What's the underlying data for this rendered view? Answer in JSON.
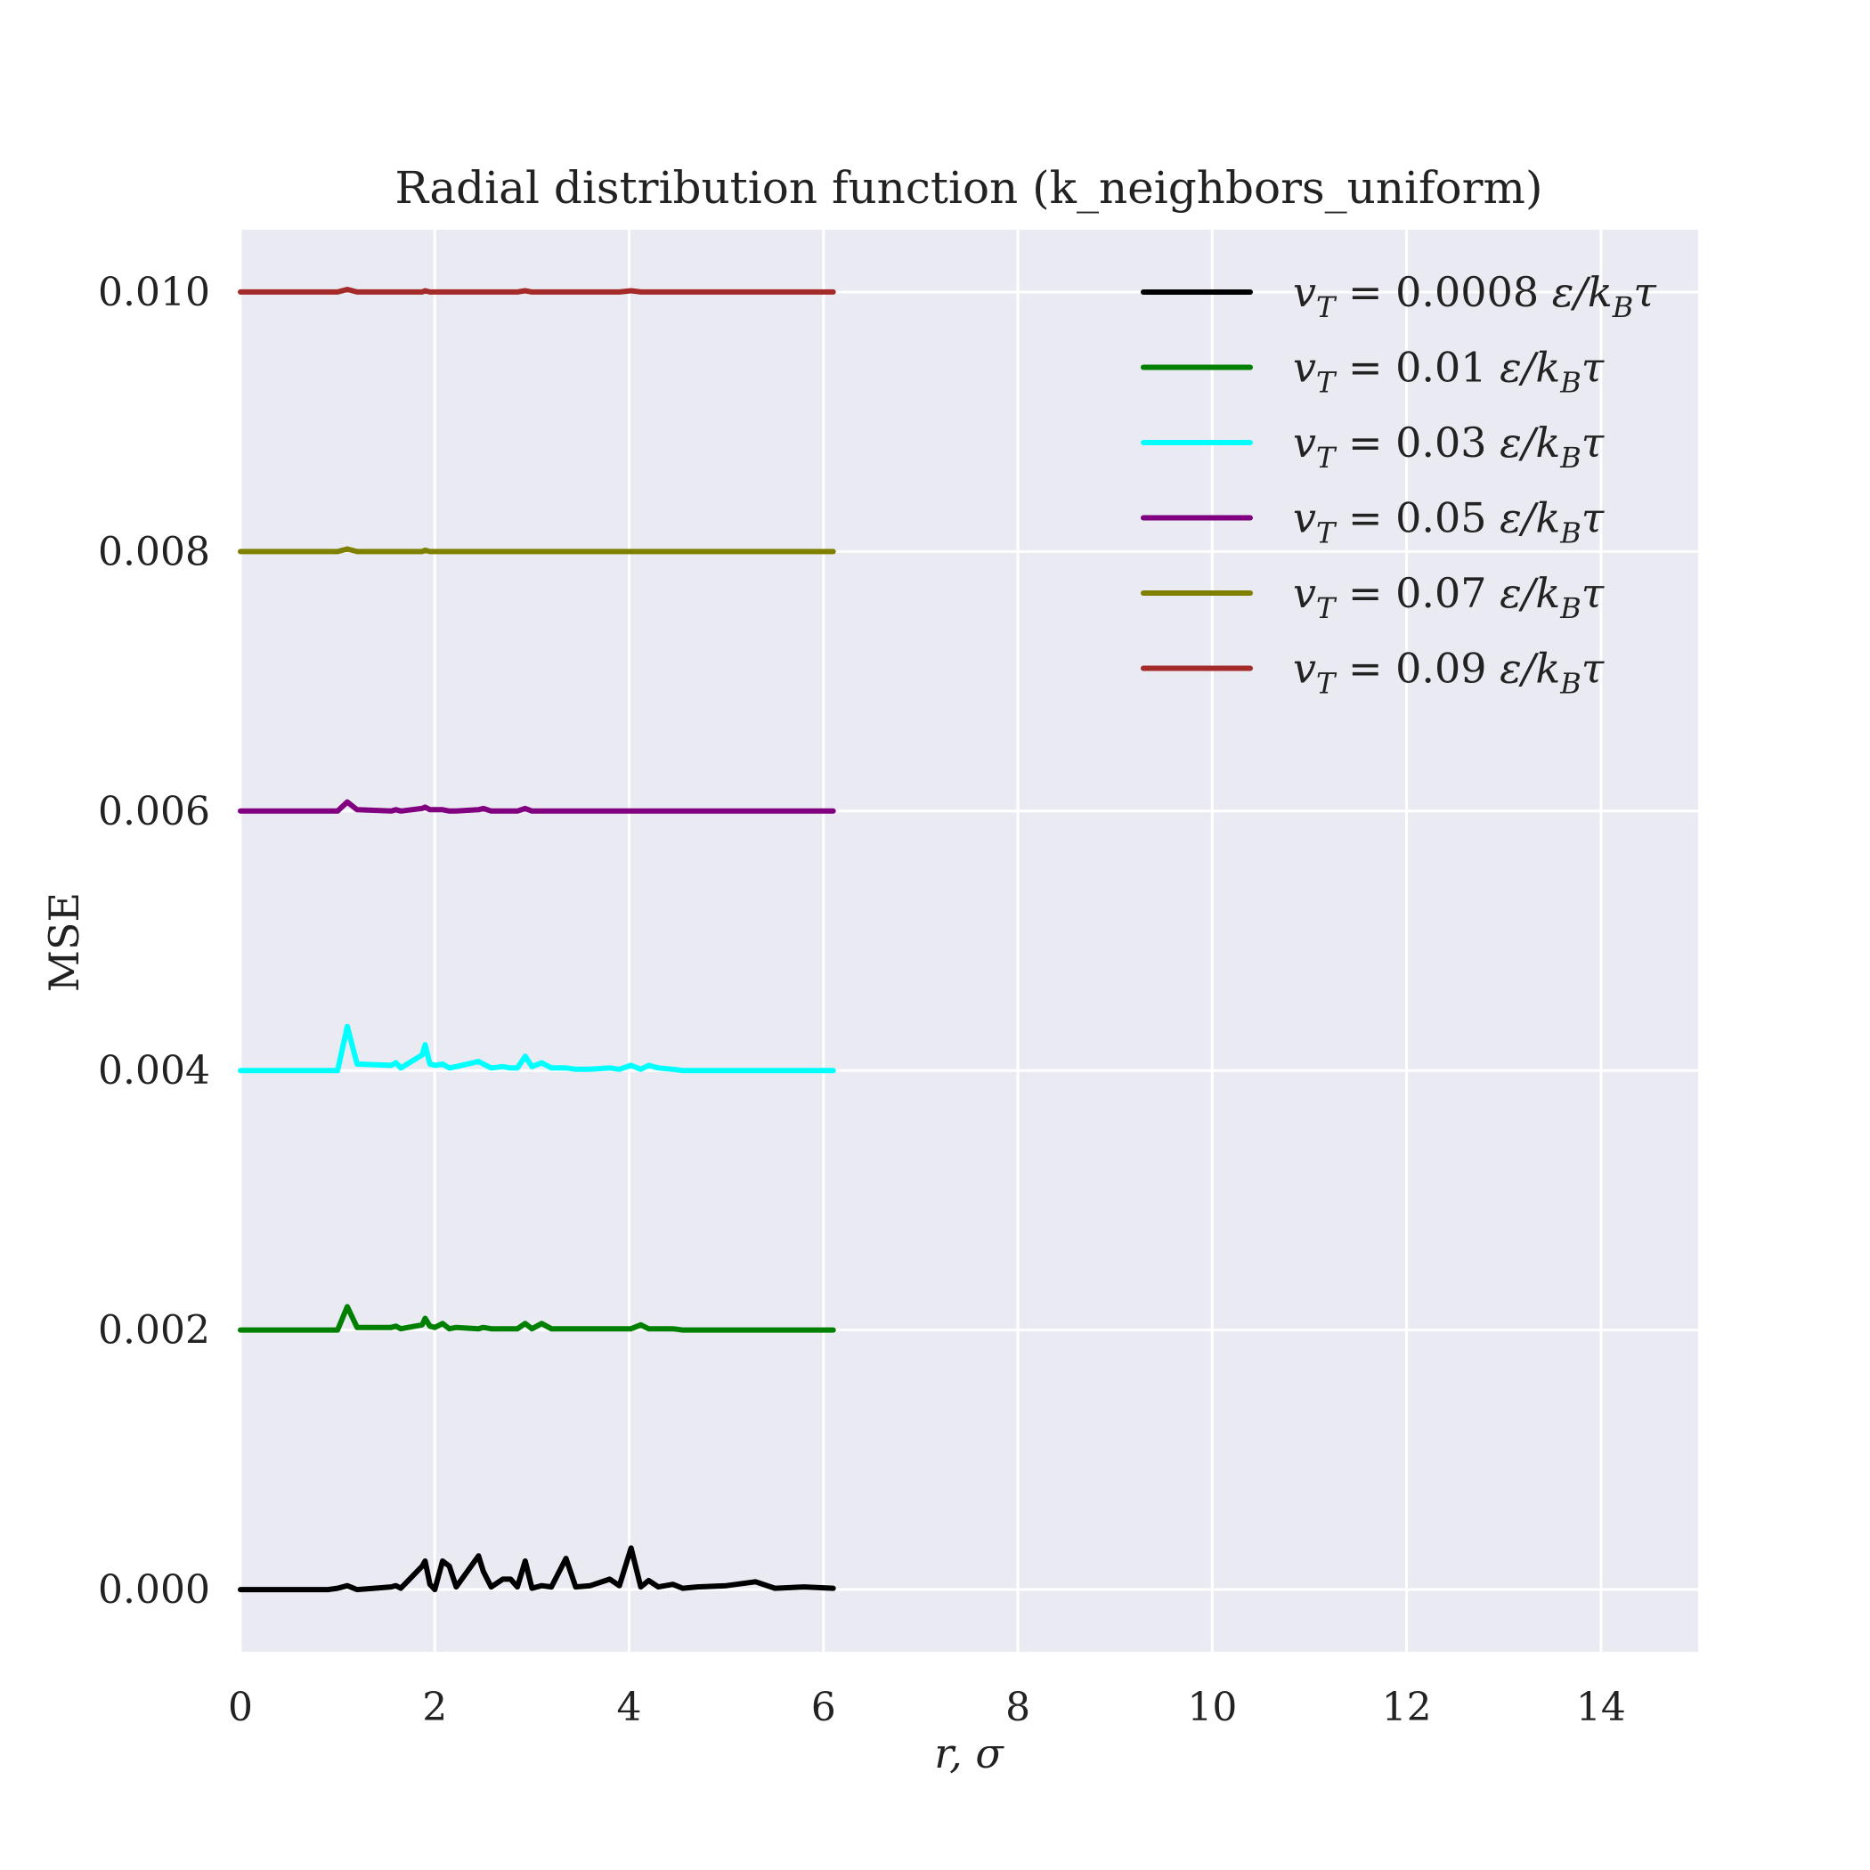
{
  "chart_data": {
    "type": "line",
    "title": "Radial distribution function (k_neighbors_uniform)",
    "xlabel": "r, σ",
    "ylabel": "MSE",
    "xlim": [
      0,
      15
    ],
    "ylim": [
      -0.00048,
      0.01048
    ],
    "xticks": [
      0,
      2,
      4,
      6,
      8,
      10,
      12,
      14
    ],
    "xtick_labels": [
      "0",
      "2",
      "4",
      "6",
      "8",
      "10",
      "12",
      "14"
    ],
    "yticks": [
      0,
      0.002,
      0.004,
      0.006,
      0.008,
      0.01
    ],
    "ytick_labels": [
      "0.000",
      "0.002",
      "0.004",
      "0.006",
      "0.008",
      "0.010"
    ],
    "grid": true,
    "background": "#eaeaf2",
    "legend_position": "top-right",
    "x": [
      0,
      0.9,
      1.0,
      1.1,
      1.2,
      1.55,
      1.6,
      1.65,
      1.87,
      1.9,
      1.95,
      2.0,
      2.08,
      2.15,
      2.22,
      2.45,
      2.5,
      2.58,
      2.7,
      2.78,
      2.85,
      2.93,
      3.0,
      3.1,
      3.2,
      3.35,
      3.45,
      3.6,
      3.8,
      3.9,
      4.02,
      4.12,
      4.2,
      4.3,
      4.45,
      4.55,
      4.7,
      5.0,
      5.3,
      5.5,
      5.8,
      6.1
    ],
    "series": [
      {
        "name": "v_T = 0.0008 ε/k_Bτ",
        "color": "#000000",
        "values": [
          0,
          0,
          1e-05,
          3e-05,
          0,
          2e-05,
          3e-05,
          1e-05,
          0.00018,
          0.00022,
          4e-05,
          0,
          0.00022,
          0.00018,
          2e-05,
          0.00026,
          0.00014,
          2e-05,
          8e-05,
          8e-05,
          2e-05,
          0.00022,
          1e-05,
          3e-05,
          2e-05,
          0.00024,
          2e-05,
          3e-05,
          8e-05,
          3e-05,
          0.00032,
          2e-05,
          7e-05,
          2e-05,
          4e-05,
          1e-05,
          2e-05,
          3e-05,
          6e-05,
          1e-05,
          2e-05,
          1e-05
        ]
      },
      {
        "name": "v_T = 0.01 ε/k_Bτ",
        "color": "#008000",
        "values": [
          0.002,
          0.002,
          0.002,
          0.00218,
          0.00202,
          0.00202,
          0.00203,
          0.00201,
          0.00204,
          0.00209,
          0.00203,
          0.00202,
          0.00205,
          0.00201,
          0.00202,
          0.00201,
          0.00202,
          0.00201,
          0.00201,
          0.00201,
          0.00201,
          0.00205,
          0.00201,
          0.00205,
          0.00201,
          0.00201,
          0.00201,
          0.00201,
          0.00201,
          0.00201,
          0.00201,
          0.00204,
          0.00201,
          0.00201,
          0.00201,
          0.002,
          0.002,
          0.002,
          0.002,
          0.002,
          0.002,
          0.002
        ]
      },
      {
        "name": "v_T = 0.03 ε/k_Bτ",
        "color": "#00ffff",
        "values": [
          0.004,
          0.004,
          0.004,
          0.00434,
          0.00405,
          0.00404,
          0.00406,
          0.00402,
          0.00412,
          0.0042,
          0.00405,
          0.00404,
          0.00405,
          0.00402,
          0.00403,
          0.00407,
          0.00405,
          0.00402,
          0.00403,
          0.00402,
          0.00402,
          0.00411,
          0.00403,
          0.00406,
          0.00402,
          0.00402,
          0.00401,
          0.00401,
          0.00402,
          0.00401,
          0.00404,
          0.00401,
          0.00404,
          0.00402,
          0.00401,
          0.004,
          0.004,
          0.004,
          0.004,
          0.004,
          0.004,
          0.004
        ]
      },
      {
        "name": "v_T = 0.05 ε/k_Bτ",
        "color": "#800080",
        "values": [
          0.006,
          0.006,
          0.006,
          0.00607,
          0.00601,
          0.006,
          0.00601,
          0.006,
          0.00602,
          0.00603,
          0.00601,
          0.00601,
          0.00601,
          0.006,
          0.006,
          0.00601,
          0.00602,
          0.006,
          0.006,
          0.006,
          0.006,
          0.00602,
          0.006,
          0.006,
          0.006,
          0.006,
          0.006,
          0.006,
          0.006,
          0.006,
          0.006,
          0.006,
          0.006,
          0.006,
          0.006,
          0.006,
          0.006,
          0.006,
          0.006,
          0.006,
          0.006,
          0.006
        ]
      },
      {
        "name": "v_T = 0.07 ε/k_Bτ",
        "color": "#808000",
        "values": [
          0.008,
          0.008,
          0.008,
          0.00802,
          0.008,
          0.008,
          0.008,
          0.008,
          0.008,
          0.00801,
          0.008,
          0.008,
          0.008,
          0.008,
          0.008,
          0.008,
          0.008,
          0.008,
          0.008,
          0.008,
          0.008,
          0.008,
          0.008,
          0.008,
          0.008,
          0.008,
          0.008,
          0.008,
          0.008,
          0.008,
          0.008,
          0.008,
          0.008,
          0.008,
          0.008,
          0.008,
          0.008,
          0.008,
          0.008,
          0.008,
          0.008,
          0.008
        ]
      },
      {
        "name": "v_T = 0.09 ε/k_Bτ",
        "color": "#a52a2a",
        "values": [
          0.01,
          0.01,
          0.01,
          0.01002,
          0.01,
          0.01,
          0.01,
          0.01,
          0.01,
          0.01001,
          0.01,
          0.01,
          0.01,
          0.01,
          0.01,
          0.01,
          0.01,
          0.01,
          0.01,
          0.01,
          0.01,
          0.01001,
          0.01,
          0.01,
          0.01,
          0.01,
          0.01,
          0.01,
          0.01,
          0.01,
          0.01001,
          0.01,
          0.01,
          0.01,
          0.01,
          0.01,
          0.01,
          0.01,
          0.01,
          0.01,
          0.01,
          0.01
        ]
      }
    ],
    "legend": [
      {
        "v": "v",
        "T": "T",
        "eq": " = ",
        "num": "0.0008",
        "e": " ε/k",
        "B": "B",
        "tau": "τ"
      },
      {
        "v": "v",
        "T": "T",
        "eq": " = ",
        "num": "0.01",
        "e": " ε/k",
        "B": "B",
        "tau": "τ"
      },
      {
        "v": "v",
        "T": "T",
        "eq": " = ",
        "num": "0.03",
        "e": " ε/k",
        "B": "B",
        "tau": "τ"
      },
      {
        "v": "v",
        "T": "T",
        "eq": " = ",
        "num": "0.05",
        "e": " ε/k",
        "B": "B",
        "tau": "τ"
      },
      {
        "v": "v",
        "T": "T",
        "eq": " = ",
        "num": "0.07",
        "e": " ε/k",
        "B": "B",
        "tau": "τ"
      },
      {
        "v": "v",
        "T": "T",
        "eq": " = ",
        "num": "0.09",
        "e": " ε/k",
        "B": "B",
        "tau": "τ"
      }
    ]
  }
}
